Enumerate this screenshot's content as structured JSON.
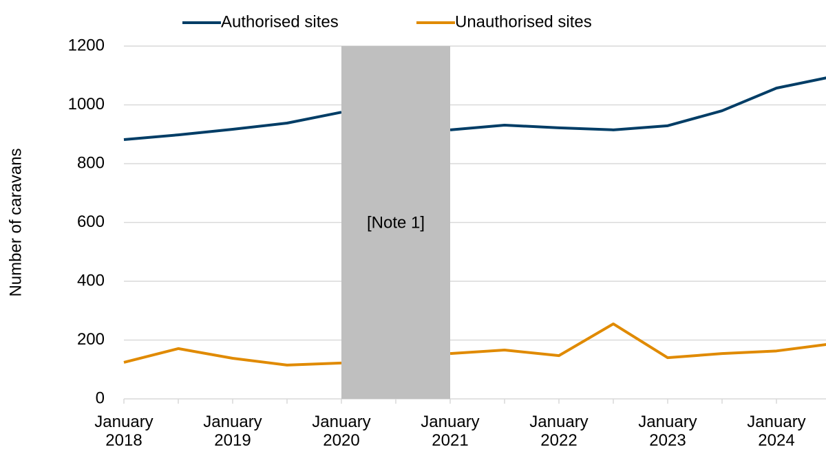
{
  "chart_data": {
    "type": "line",
    "y_label": "Number of caravans",
    "annotation": "[Note 1]",
    "categories": [
      "January 2018",
      null,
      "January 2019",
      null,
      "January 2020",
      null,
      "January 2021",
      null,
      "January 2022",
      null,
      "January 2023",
      null,
      "January 2024",
      null
    ],
    "series": [
      {
        "name": "Authorised sites",
        "color": "#003d66",
        "values": [
          882,
          898,
          917,
          938,
          975,
          null,
          915,
          931,
          922,
          915,
          929,
          980,
          1057,
          1095
        ]
      },
      {
        "name": "Unauthorised sites",
        "color": "#e08a00",
        "values": [
          124,
          171,
          138,
          115,
          122,
          null,
          154,
          166,
          147,
          255,
          140,
          154,
          163,
          187
        ]
      }
    ],
    "ylim": [
      0,
      1200
    ],
    "yticks": [
      0,
      200,
      400,
      600,
      800,
      1000,
      1200
    ],
    "grid": true,
    "legend": "top"
  }
}
